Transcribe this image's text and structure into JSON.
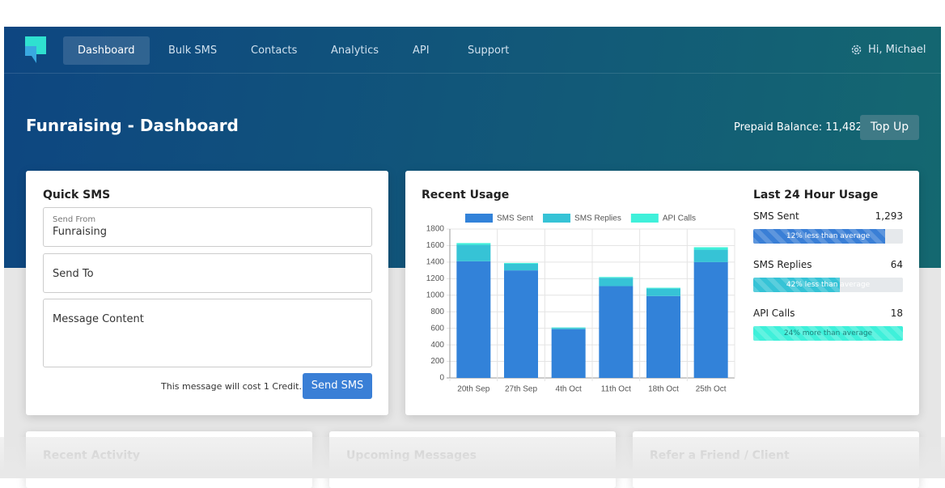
{
  "nav": {
    "items": [
      "Dashboard",
      "Bulk SMS",
      "Contacts",
      "Analytics",
      "API",
      "Support"
    ],
    "active": 0,
    "user": "Hi, Michael"
  },
  "header": {
    "title": "Funraising - Dashboard",
    "balance_label": "Prepaid Balance:",
    "balance_value": "11,482",
    "button": "Top Up"
  },
  "quick_sms": {
    "title": "Quick SMS",
    "from_label": "Send From",
    "from_value": "Funraising",
    "to_placeholder": "Send To",
    "message_placeholder": "Message Content",
    "cost_note": "This message will cost 1 Credit.",
    "button": "Send SMS"
  },
  "chart_data": {
    "type": "stacked_bar",
    "title": "Recent Usage",
    "categories": [
      "20th Sep",
      "27th Sep",
      "4th Oct",
      "11th Oct",
      "18th Oct",
      "25th Oct"
    ],
    "series": [
      {
        "name": "SMS Sent",
        "color": "#3282d9",
        "values": [
          1410,
          1300,
          590,
          1110,
          990,
          1400
        ]
      },
      {
        "name": "SMS Replies",
        "color": "#36c3d6",
        "values": [
          200,
          80,
          15,
          100,
          90,
          150
        ]
      },
      {
        "name": "API Calls",
        "color": "#3ff0da",
        "values": [
          20,
          10,
          5,
          10,
          10,
          30
        ]
      }
    ],
    "ylim": [
      0,
      1800
    ],
    "yticks": [
      0,
      200,
      400,
      600,
      800,
      1000,
      1200,
      1400,
      1600,
      1800
    ],
    "grid": true
  },
  "usage24": {
    "title": "Last 24 Hour Usage",
    "items": [
      {
        "name": "SMS Sent",
        "value": "1,293",
        "note": "12% less than average",
        "fill": 88,
        "color": "#3a7fd6"
      },
      {
        "name": "SMS Replies",
        "value": "64",
        "note": "42% less than average",
        "fill": 58,
        "color": "#36c3d6"
      },
      {
        "name": "API Calls",
        "value": "18",
        "note": "24% more than average",
        "fill": 100,
        "color": "#3ff0da"
      }
    ]
  },
  "bottom_cards": [
    "Recent Activity",
    "Upcoming Messages",
    "Refer a Friend / Client"
  ]
}
